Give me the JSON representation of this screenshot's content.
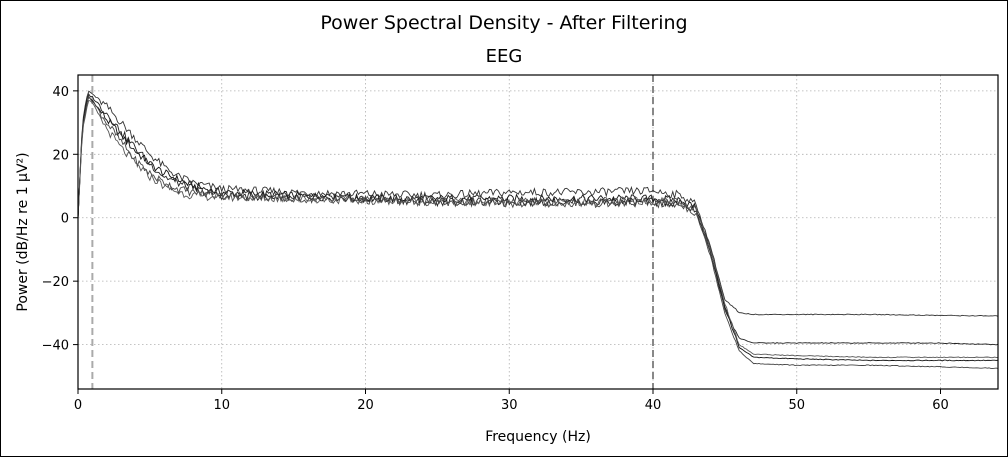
{
  "figure": {
    "suptitle": "Power Spectral Density - After Filtering"
  },
  "chart_data": {
    "type": "line",
    "title": "EEG",
    "xlabel": "Frequency (Hz)",
    "ylabel": "Power (dB/Hz re 1 µV²)",
    "xlim": [
      0,
      64
    ],
    "ylim": [
      -54,
      45
    ],
    "xticks": [
      0,
      10,
      20,
      30,
      40,
      50,
      60
    ],
    "yticks": [
      -40,
      -20,
      0,
      20,
      40
    ],
    "grid": true,
    "vlines": [
      {
        "x": 1,
        "style": "dashed",
        "color": "#aaaaaa"
      },
      {
        "x": 40,
        "style": "dashed",
        "color": "#888888"
      }
    ],
    "line_colors": [
      "#111111",
      "#333333",
      "#222222",
      "#444444",
      "#555555"
    ],
    "series": [
      {
        "points": [
          [
            0,
            0
          ],
          [
            0.3,
            28
          ],
          [
            0.7,
            38
          ],
          [
            1,
            37
          ],
          [
            2,
            31
          ],
          [
            3,
            26
          ],
          [
            4,
            21
          ],
          [
            5,
            17
          ],
          [
            6,
            14
          ],
          [
            7,
            12
          ],
          [
            8,
            10
          ],
          [
            10,
            8
          ],
          [
            15,
            7
          ],
          [
            20,
            6
          ],
          [
            25,
            6
          ],
          [
            30,
            6
          ],
          [
            35,
            6
          ],
          [
            40,
            6
          ],
          [
            42,
            5.5
          ],
          [
            43,
            3
          ],
          [
            44,
            -10
          ],
          [
            45,
            -28
          ],
          [
            46,
            -41
          ],
          [
            47,
            -44
          ],
          [
            50,
            -44.5
          ],
          [
            55,
            -45
          ],
          [
            60,
            -45
          ],
          [
            64,
            -45
          ]
        ]
      },
      {
        "points": [
          [
            0,
            0
          ],
          [
            0.3,
            30
          ],
          [
            0.7,
            40
          ],
          [
            1,
            39
          ],
          [
            2,
            35
          ],
          [
            3,
            30
          ],
          [
            4,
            25
          ],
          [
            5,
            20
          ],
          [
            6,
            16
          ],
          [
            7,
            13
          ],
          [
            8,
            11
          ],
          [
            10,
            9
          ],
          [
            15,
            8
          ],
          [
            20,
            7.5
          ],
          [
            25,
            7
          ],
          [
            30,
            8
          ],
          [
            35,
            8
          ],
          [
            40,
            8.5
          ],
          [
            42,
            7
          ],
          [
            43,
            4
          ],
          [
            44,
            -9
          ],
          [
            45,
            -26
          ],
          [
            46,
            -30
          ],
          [
            47,
            -30.5
          ],
          [
            50,
            -30.5
          ],
          [
            55,
            -30.5
          ],
          [
            60,
            -30.8
          ],
          [
            64,
            -31
          ]
        ]
      },
      {
        "points": [
          [
            0,
            0
          ],
          [
            0.3,
            29
          ],
          [
            0.7,
            39
          ],
          [
            1,
            38
          ],
          [
            2,
            33
          ],
          [
            3,
            27
          ],
          [
            4,
            22
          ],
          [
            5,
            17
          ],
          [
            6,
            13
          ],
          [
            7,
            11
          ],
          [
            8,
            9
          ],
          [
            10,
            7
          ],
          [
            15,
            6.5
          ],
          [
            20,
            6
          ],
          [
            25,
            5
          ],
          [
            30,
            5
          ],
          [
            35,
            5
          ],
          [
            40,
            5
          ],
          [
            42,
            4.5
          ],
          [
            43,
            2
          ],
          [
            44,
            -11
          ],
          [
            45,
            -29
          ],
          [
            46,
            -38
          ],
          [
            47,
            -39.5
          ],
          [
            50,
            -39.5
          ],
          [
            55,
            -39.5
          ],
          [
            60,
            -39.5
          ],
          [
            64,
            -40
          ]
        ]
      },
      {
        "points": [
          [
            0,
            0
          ],
          [
            0.3,
            28
          ],
          [
            0.7,
            38
          ],
          [
            1,
            37
          ],
          [
            2,
            30
          ],
          [
            3,
            24
          ],
          [
            4,
            18
          ],
          [
            5,
            14
          ],
          [
            6,
            11
          ],
          [
            7,
            9
          ],
          [
            8,
            8
          ],
          [
            10,
            7
          ],
          [
            15,
            6
          ],
          [
            20,
            5.5
          ],
          [
            25,
            5
          ],
          [
            30,
            4.5
          ],
          [
            35,
            4.5
          ],
          [
            40,
            4.5
          ],
          [
            42,
            4
          ],
          [
            43,
            1.5
          ],
          [
            44,
            -12
          ],
          [
            45,
            -30
          ],
          [
            46,
            -42
          ],
          [
            47,
            -46
          ],
          [
            50,
            -46.5
          ],
          [
            55,
            -46.5
          ],
          [
            60,
            -47
          ],
          [
            64,
            -47.5
          ]
        ]
      },
      {
        "points": [
          [
            0,
            0
          ],
          [
            0.3,
            27
          ],
          [
            0.7,
            37
          ],
          [
            1,
            36
          ],
          [
            2,
            28
          ],
          [
            3,
            22
          ],
          [
            4,
            17
          ],
          [
            5,
            13
          ],
          [
            6,
            10
          ],
          [
            7,
            8
          ],
          [
            8,
            7
          ],
          [
            10,
            6.5
          ],
          [
            15,
            6
          ],
          [
            20,
            5.5
          ],
          [
            25,
            5
          ],
          [
            30,
            5
          ],
          [
            35,
            5
          ],
          [
            40,
            5.5
          ],
          [
            42,
            5
          ],
          [
            43,
            2.5
          ],
          [
            44,
            -10
          ],
          [
            45,
            -27
          ],
          [
            46,
            -40
          ],
          [
            47,
            -43
          ],
          [
            50,
            -43.5
          ],
          [
            55,
            -44
          ],
          [
            60,
            -44
          ],
          [
            64,
            -44
          ]
        ]
      }
    ]
  }
}
